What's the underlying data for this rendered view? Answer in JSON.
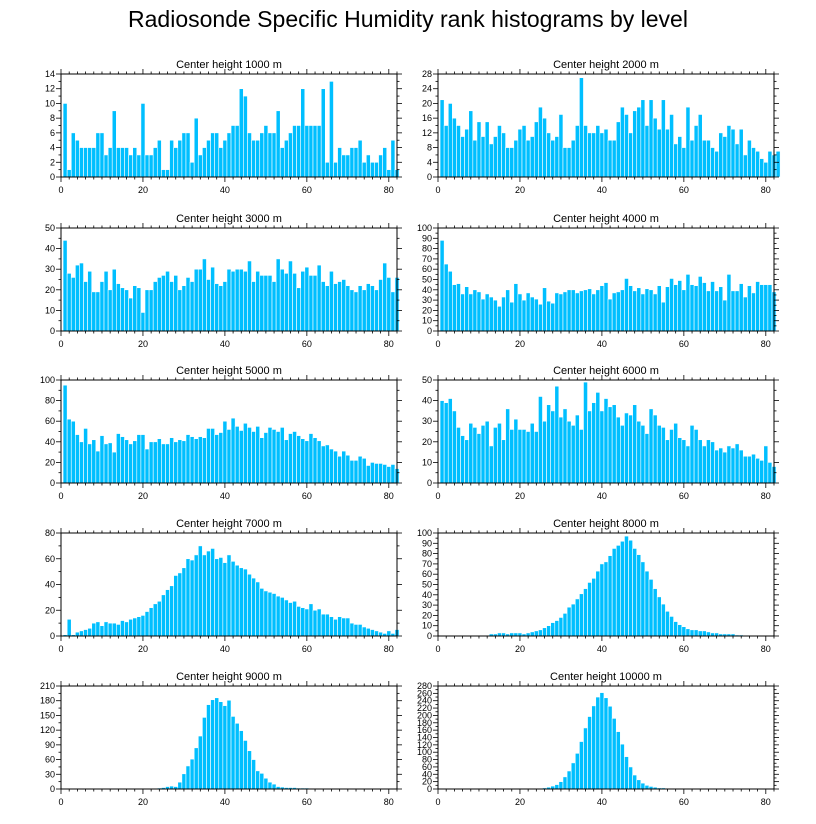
{
  "title": "Radiosonde Specific Humidity rank histograms by level",
  "colors": {
    "bar": "#00BFFF",
    "bar_edge": "#ffffff",
    "axis": "#000000",
    "background": "#ffffff"
  },
  "chart_data": [
    {
      "type": "bar",
      "title": "Center height 1000 m",
      "xlim": [
        0,
        82
      ],
      "ylim": [
        0,
        14
      ],
      "xticks": [
        0,
        20,
        40,
        60,
        80
      ],
      "yticks": [
        0,
        2,
        4,
        6,
        8,
        10,
        12,
        14
      ],
      "bin_start": 1,
      "values": [
        10,
        1,
        6,
        5,
        4,
        4,
        4,
        4,
        6,
        6,
        3,
        4,
        9,
        4,
        4,
        4,
        3,
        4,
        3,
        10,
        3,
        3,
        4,
        5,
        1,
        1,
        5,
        4,
        5,
        6,
        6,
        2,
        8,
        3,
        4,
        5,
        6,
        6,
        4,
        5,
        6,
        7,
        7,
        12,
        11,
        6,
        5,
        5,
        6,
        7,
        6,
        6,
        9,
        4,
        5,
        6,
        7,
        7,
        12,
        7,
        7,
        7,
        7,
        12,
        2,
        13,
        2,
        4,
        3,
        3,
        4,
        4,
        5,
        2,
        3,
        2,
        2,
        3,
        4,
        1,
        5,
        1
      ]
    },
    {
      "type": "bar",
      "title": "Center height 2000 m",
      "xlim": [
        0,
        82
      ],
      "ylim": [
        0,
        28
      ],
      "xticks": [
        0,
        20,
        40,
        60,
        80
      ],
      "yticks": [
        0,
        4,
        8,
        12,
        16,
        20,
        24,
        28
      ],
      "bin_start": 1,
      "values": [
        21,
        14,
        20,
        16,
        14,
        11,
        13,
        18,
        10,
        15,
        11,
        15,
        9,
        11,
        14,
        12,
        8,
        8,
        10,
        13,
        14,
        10,
        11,
        15,
        19,
        16,
        12,
        10,
        11,
        17,
        8,
        8,
        10,
        14,
        27,
        14,
        12,
        12,
        14,
        12,
        13,
        10,
        10,
        15,
        19,
        17,
        12,
        18,
        19,
        21,
        14,
        21,
        16,
        13,
        21,
        13,
        17,
        9,
        11,
        8,
        19,
        10,
        14,
        17,
        10,
        10,
        8,
        7,
        12,
        11,
        14,
        13,
        9,
        13,
        6,
        10,
        8,
        7,
        5,
        4,
        7,
        6,
        7
      ]
    },
    {
      "type": "bar",
      "title": "Center height 3000 m",
      "xlim": [
        0,
        82
      ],
      "ylim": [
        0,
        50
      ],
      "xticks": [
        0,
        20,
        40,
        60,
        80
      ],
      "yticks": [
        0,
        10,
        20,
        30,
        40,
        50
      ],
      "bin_start": 1,
      "values": [
        44,
        28,
        26,
        32,
        33,
        24,
        29,
        19,
        19,
        24,
        29,
        20,
        30,
        23,
        21,
        20,
        16,
        22,
        21,
        9,
        20,
        20,
        24,
        26,
        27,
        29,
        24,
        27,
        20,
        22,
        26,
        24,
        30,
        30,
        35,
        25,
        31,
        23,
        22,
        24,
        30,
        29,
        30,
        30,
        29,
        34,
        24,
        29,
        27,
        27,
        27,
        24,
        35,
        30,
        28,
        34,
        28,
        21,
        29,
        31,
        27,
        27,
        32,
        24,
        22,
        29,
        23,
        24,
        25,
        22,
        20,
        19,
        22,
        20,
        23,
        22,
        20,
        25,
        33,
        26,
        19,
        26
      ]
    },
    {
      "type": "bar",
      "title": "Center height 4000 m",
      "xlim": [
        0,
        82
      ],
      "ylim": [
        0,
        100
      ],
      "xticks": [
        0,
        20,
        40,
        60,
        80
      ],
      "yticks": [
        0,
        10,
        20,
        30,
        40,
        50,
        60,
        70,
        80,
        90,
        100
      ],
      "bin_start": 1,
      "values": [
        88,
        65,
        58,
        45,
        46,
        36,
        43,
        36,
        40,
        38,
        31,
        36,
        33,
        30,
        24,
        33,
        40,
        28,
        46,
        36,
        30,
        37,
        33,
        31,
        26,
        42,
        29,
        27,
        37,
        36,
        38,
        40,
        40,
        37,
        39,
        40,
        41,
        36,
        40,
        44,
        47,
        31,
        37,
        38,
        40,
        51,
        44,
        39,
        42,
        36,
        41,
        40,
        36,
        44,
        28,
        43,
        51,
        45,
        49,
        40,
        55,
        45,
        44,
        53,
        47,
        39,
        48,
        39,
        43,
        30,
        55,
        39,
        39,
        46,
        33,
        44,
        37,
        48,
        45,
        45,
        45,
        38
      ]
    },
    {
      "type": "bar",
      "title": "Center height 5000 m",
      "xlim": [
        0,
        82
      ],
      "ylim": [
        0,
        100
      ],
      "xticks": [
        0,
        20,
        40,
        60,
        80
      ],
      "yticks": [
        0,
        20,
        40,
        60,
        80,
        100
      ],
      "bin_start": 1,
      "values": [
        95,
        62,
        60,
        47,
        40,
        53,
        38,
        42,
        31,
        46,
        38,
        39,
        30,
        48,
        45,
        42,
        38,
        41,
        47,
        47,
        33,
        40,
        40,
        43,
        38,
        38,
        44,
        40,
        42,
        41,
        47,
        45,
        43,
        45,
        44,
        53,
        53,
        47,
        49,
        60,
        52,
        63,
        55,
        51,
        58,
        54,
        50,
        55,
        44,
        49,
        54,
        52,
        50,
        54,
        42,
        48,
        50,
        46,
        43,
        41,
        48,
        44,
        41,
        36,
        37,
        33,
        31,
        26,
        31,
        27,
        22,
        22,
        26,
        24,
        17,
        20,
        19,
        19,
        18,
        16,
        18,
        14
      ]
    },
    {
      "type": "bar",
      "title": "Center height 6000 m",
      "xlim": [
        0,
        82
      ],
      "ylim": [
        0,
        50
      ],
      "xticks": [
        0,
        20,
        40,
        60,
        80
      ],
      "yticks": [
        0,
        10,
        20,
        30,
        40,
        50
      ],
      "bin_start": 1,
      "values": [
        40,
        39,
        41,
        35,
        27,
        23,
        21,
        29,
        27,
        24,
        28,
        30,
        18,
        27,
        29,
        21,
        36,
        26,
        31,
        26,
        26,
        25,
        29,
        25,
        42,
        30,
        38,
        35,
        47,
        32,
        36,
        30,
        28,
        33,
        26,
        49,
        35,
        39,
        44,
        35,
        41,
        37,
        38,
        32,
        28,
        34,
        33,
        38,
        30,
        28,
        24,
        36,
        33,
        28,
        27,
        21,
        26,
        29,
        22,
        21,
        18,
        28,
        26,
        21,
        18,
        21,
        20,
        16,
        17,
        15,
        18,
        17,
        19,
        16,
        13,
        13,
        14,
        12,
        11,
        18,
        10,
        8
      ]
    },
    {
      "type": "bar",
      "title": "Center height 7000 m",
      "xlim": [
        0,
        82
      ],
      "ylim": [
        0,
        80
      ],
      "xticks": [
        0,
        20,
        40,
        60,
        80
      ],
      "yticks": [
        0,
        20,
        40,
        60,
        80
      ],
      "bin_start": 1,
      "values": [
        1,
        13,
        1,
        3,
        4,
        5,
        6,
        10,
        11,
        8,
        11,
        10,
        10,
        9,
        12,
        11,
        13,
        14,
        15,
        16,
        19,
        22,
        25,
        27,
        32,
        36,
        39,
        47,
        49,
        53,
        60,
        59,
        63,
        70,
        63,
        66,
        68,
        60,
        61,
        57,
        63,
        58,
        55,
        53,
        52,
        48,
        45,
        42,
        37,
        35,
        34,
        33,
        31,
        30,
        28,
        26,
        27,
        23,
        22,
        21,
        25,
        20,
        21,
        17,
        17,
        15,
        13,
        15,
        14,
        14,
        10,
        9,
        9,
        7,
        6,
        5,
        4,
        3,
        2,
        4,
        2,
        5
      ]
    },
    {
      "type": "bar",
      "title": "Center height 8000 m",
      "xlim": [
        0,
        82
      ],
      "ylim": [
        0,
        100
      ],
      "xticks": [
        0,
        20,
        40,
        60,
        80
      ],
      "yticks": [
        0,
        10,
        20,
        30,
        40,
        50,
        60,
        70,
        80,
        90,
        100
      ],
      "bin_start": 1,
      "values": [
        0,
        0,
        0,
        0,
        0,
        0,
        0,
        0,
        0,
        0,
        0,
        0,
        2,
        2,
        3,
        3,
        2,
        3,
        3,
        3,
        2,
        3,
        4,
        5,
        6,
        8,
        10,
        13,
        15,
        18,
        22,
        28,
        31,
        36,
        41,
        46,
        52,
        56,
        63,
        70,
        72,
        78,
        85,
        88,
        92,
        97,
        93,
        85,
        79,
        72,
        63,
        55,
        46,
        38,
        31,
        24,
        19,
        14,
        11,
        9,
        7,
        6,
        6,
        5,
        5,
        4,
        3,
        3,
        2,
        2,
        2,
        2,
        1,
        1,
        0,
        0,
        0,
        0,
        0,
        0,
        0,
        0
      ]
    },
    {
      "type": "bar",
      "title": "Center height 9000 m",
      "xlim": [
        0,
        82
      ],
      "ylim": [
        0,
        210
      ],
      "xticks": [
        0,
        20,
        40,
        60,
        80
      ],
      "yticks": [
        0,
        30,
        60,
        90,
        120,
        150,
        180,
        210
      ],
      "bin_start": 1,
      "values": [
        0,
        0,
        0,
        0,
        0,
        0,
        0,
        0,
        0,
        0,
        0,
        0,
        0,
        0,
        0,
        0,
        0,
        0,
        0,
        0,
        1,
        1,
        1,
        2,
        3,
        5,
        6,
        5,
        14,
        31,
        47,
        61,
        84,
        108,
        146,
        172,
        182,
        186,
        178,
        170,
        181,
        148,
        134,
        119,
        99,
        78,
        60,
        37,
        32,
        22,
        14,
        10,
        5,
        4,
        3,
        3,
        3,
        2,
        2,
        2,
        1,
        1,
        1,
        0,
        0,
        0,
        0,
        0,
        0,
        0,
        0,
        0,
        0,
        0,
        0,
        0,
        0,
        0,
        0,
        0,
        0,
        0
      ]
    },
    {
      "type": "bar",
      "title": "Center height 10000 m",
      "xlim": [
        0,
        82
      ],
      "ylim": [
        0,
        280
      ],
      "xticks": [
        0,
        20,
        40,
        60,
        80
      ],
      "yticks": [
        0,
        20,
        40,
        60,
        80,
        100,
        120,
        140,
        160,
        180,
        200,
        220,
        240,
        260,
        280
      ],
      "bin_start": 1,
      "values": [
        0,
        0,
        0,
        0,
        0,
        0,
        0,
        0,
        0,
        0,
        0,
        0,
        0,
        0,
        0,
        0,
        0,
        0,
        0,
        0,
        0,
        0,
        0,
        1,
        2,
        3,
        5,
        8,
        12,
        20,
        33,
        49,
        71,
        97,
        129,
        166,
        197,
        226,
        250,
        262,
        248,
        225,
        192,
        156,
        122,
        88,
        60,
        38,
        25,
        16,
        10,
        7,
        5,
        3,
        3,
        2,
        2,
        1,
        1,
        1,
        1,
        0,
        0,
        0,
        0,
        0,
        0,
        0,
        0,
        0,
        0,
        0,
        0,
        0,
        0,
        0,
        0,
        0,
        0,
        0,
        0,
        0
      ]
    }
  ]
}
